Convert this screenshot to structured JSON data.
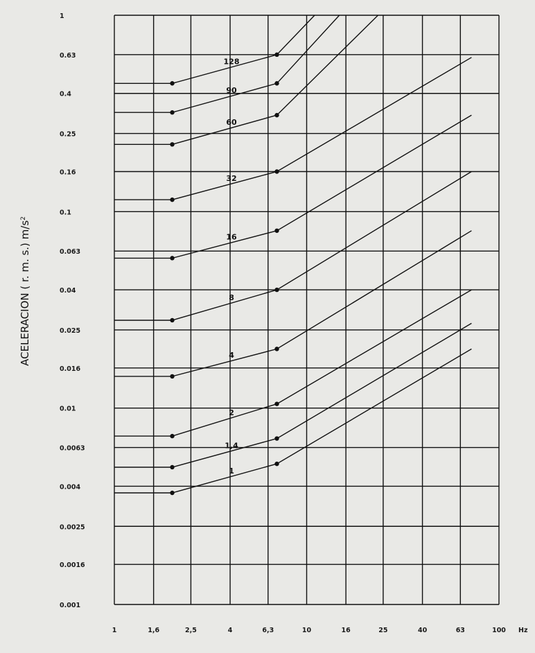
{
  "chart_data": {
    "type": "line",
    "title": "",
    "xlabel": "",
    "xlabel_unit": "Hz",
    "ylabel": "ACELERACION ( r. m. s.) m/s",
    "ylabel_superscript": "2",
    "x_scale": "log",
    "y_scale": "log",
    "xlim": [
      1,
      100
    ],
    "ylim": [
      0.001,
      1
    ],
    "grid": true,
    "x_ticks": [
      {
        "value": 1,
        "label": "1"
      },
      {
        "value": 1.6,
        "label": "1,6"
      },
      {
        "value": 2.5,
        "label": "2,5"
      },
      {
        "value": 4,
        "label": "4"
      },
      {
        "value": 6.3,
        "label": "6,3"
      },
      {
        "value": 10,
        "label": "10"
      },
      {
        "value": 16,
        "label": "16"
      },
      {
        "value": 25,
        "label": "25"
      },
      {
        "value": 40,
        "label": "40"
      },
      {
        "value": 63,
        "label": "63"
      },
      {
        "value": 100,
        "label": "100"
      }
    ],
    "y_ticks": [
      {
        "value": 1,
        "label": "1"
      },
      {
        "value": 0.63,
        "label": "0.63"
      },
      {
        "value": 0.4,
        "label": "0.4"
      },
      {
        "value": 0.25,
        "label": "0.25"
      },
      {
        "value": 0.16,
        "label": "0.16"
      },
      {
        "value": 0.1,
        "label": "0.1"
      },
      {
        "value": 0.063,
        "label": "0.063"
      },
      {
        "value": 0.04,
        "label": "0.04"
      },
      {
        "value": 0.025,
        "label": "0.025"
      },
      {
        "value": 0.016,
        "label": "0.016"
      },
      {
        "value": 0.01,
        "label": "0.01"
      },
      {
        "value": 0.0063,
        "label": "0.0063"
      },
      {
        "value": 0.004,
        "label": "0.004"
      },
      {
        "value": 0.0025,
        "label": "0.0025"
      },
      {
        "value": 0.0016,
        "label": "0.0016"
      },
      {
        "value": 0.001,
        "label": "0.001"
      }
    ],
    "series": [
      {
        "name": "128",
        "x": [
          1,
          2,
          7,
          11
        ],
        "y": [
          0.45,
          0.45,
          0.63,
          1.0
        ]
      },
      {
        "name": "90",
        "x": [
          1,
          2,
          7,
          14.8
        ],
        "y": [
          0.32,
          0.32,
          0.45,
          1.0
        ]
      },
      {
        "name": "60",
        "x": [
          1,
          2,
          7,
          23.5
        ],
        "y": [
          0.22,
          0.22,
          0.31,
          1.0
        ]
      },
      {
        "name": "32",
        "x": [
          1,
          2,
          7,
          72
        ],
        "y": [
          0.115,
          0.115,
          0.16,
          0.61
        ]
      },
      {
        "name": "16",
        "x": [
          1,
          2,
          7,
          72
        ],
        "y": [
          0.058,
          0.058,
          0.08,
          0.31
        ]
      },
      {
        "name": "8",
        "x": [
          1,
          2,
          7,
          72
        ],
        "y": [
          0.028,
          0.028,
          0.04,
          0.16
        ]
      },
      {
        "name": "4",
        "x": [
          1,
          2,
          7,
          72
        ],
        "y": [
          0.0145,
          0.0145,
          0.02,
          0.08
        ]
      },
      {
        "name": "2",
        "x": [
          1,
          2,
          7,
          72
        ],
        "y": [
          0.0072,
          0.0072,
          0.0105,
          0.04
        ]
      },
      {
        "name": "1,4",
        "x": [
          1,
          2,
          7,
          72
        ],
        "y": [
          0.005,
          0.005,
          0.007,
          0.027
        ]
      },
      {
        "name": "1",
        "x": [
          1,
          2,
          7,
          72
        ],
        "y": [
          0.0037,
          0.0037,
          0.0052,
          0.02
        ]
      }
    ]
  }
}
